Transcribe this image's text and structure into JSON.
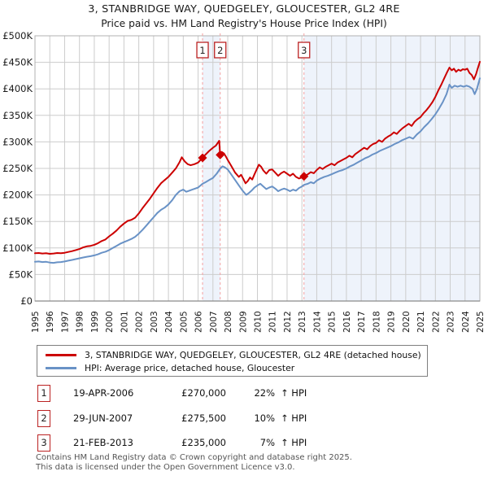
{
  "chart_data": {
    "type": "line",
    "title": "3, STANBRIDGE WAY, QUEDGELEY, GLOUCESTER, GL2 4RE",
    "subtitle": "Price paid vs. HM Land Registry's House Price Index (HPI)",
    "units": "GBP_thousands",
    "x_range": [
      1995,
      2025
    ],
    "y_range_k": [
      0,
      500
    ],
    "grid": true,
    "legend_position": "bottom",
    "y_tick_values_k": [
      0,
      50,
      100,
      150,
      200,
      250,
      300,
      350,
      400,
      450,
      500
    ],
    "y_tick_labels": [
      "£0",
      "£50K",
      "£100K",
      "£150K",
      "£200K",
      "£250K",
      "£300K",
      "£350K",
      "£400K",
      "£450K",
      "£500K"
    ],
    "x_ticks": [
      1995,
      1996,
      1997,
      1998,
      1999,
      2000,
      2001,
      2002,
      2003,
      2004,
      2005,
      2006,
      2007,
      2008,
      2009,
      2010,
      2011,
      2012,
      2013,
      2014,
      2015,
      2016,
      2017,
      2018,
      2019,
      2020,
      2021,
      2022,
      2023,
      2024,
      2025
    ],
    "shaded_bands": [
      [
        2006.3,
        2007.49
      ],
      [
        2013.14,
        2025
      ]
    ],
    "band_color": "#eef3fb",
    "dashed_line_color": "#f4a0a0",
    "sales_markers": [
      {
        "n": "1",
        "x": 2006.3,
        "y_k": 270
      },
      {
        "n": "2",
        "x": 2007.49,
        "y_k": 275.5
      },
      {
        "n": "3",
        "x": 2013.14,
        "y_k": 235
      }
    ],
    "series": [
      {
        "name": "3, STANBRIDGE WAY, QUEDGELEY, GLOUCESTER, GL2 4RE (detached house)",
        "color": "#cc0000",
        "points": [
          [
            1995,
            90
          ],
          [
            1995.25,
            90.5
          ],
          [
            1995.5,
            89.5
          ],
          [
            1995.75,
            90
          ],
          [
            1996,
            89
          ],
          [
            1996.25,
            89.5
          ],
          [
            1996.5,
            90.5
          ],
          [
            1996.75,
            90
          ],
          [
            1997,
            91
          ],
          [
            1997.25,
            92.5
          ],
          [
            1997.5,
            94
          ],
          [
            1997.75,
            96
          ],
          [
            1998,
            98
          ],
          [
            1998.25,
            101
          ],
          [
            1998.5,
            103
          ],
          [
            1998.75,
            104
          ],
          [
            1999,
            106
          ],
          [
            1999.25,
            109
          ],
          [
            1999.5,
            113
          ],
          [
            1999.75,
            116
          ],
          [
            2000,
            122
          ],
          [
            2000.25,
            127
          ],
          [
            2000.5,
            133
          ],
          [
            2000.75,
            140
          ],
          [
            2001,
            146
          ],
          [
            2001.25,
            151
          ],
          [
            2001.5,
            153
          ],
          [
            2001.75,
            157
          ],
          [
            2002,
            165
          ],
          [
            2002.25,
            175
          ],
          [
            2002.5,
            184
          ],
          [
            2002.75,
            193
          ],
          [
            2003,
            203
          ],
          [
            2003.25,
            213
          ],
          [
            2003.5,
            222
          ],
          [
            2003.75,
            228
          ],
          [
            2004,
            234
          ],
          [
            2004.25,
            242
          ],
          [
            2004.5,
            250
          ],
          [
            2004.75,
            262
          ],
          [
            2004.9,
            271
          ],
          [
            2005.1,
            263
          ],
          [
            2005.3,
            258
          ],
          [
            2005.5,
            256
          ],
          [
            2005.75,
            258
          ],
          [
            2006,
            261
          ],
          [
            2006.3,
            270
          ],
          [
            2006.5,
            276
          ],
          [
            2006.75,
            283
          ],
          [
            2007,
            289
          ],
          [
            2007.2,
            293
          ],
          [
            2007.42,
            302
          ],
          [
            2007.49,
            275.5
          ],
          [
            2007.6,
            281
          ],
          [
            2007.75,
            278
          ],
          [
            2007.9,
            271
          ],
          [
            2008,
            266
          ],
          [
            2008.25,
            254
          ],
          [
            2008.5,
            242
          ],
          [
            2008.75,
            234
          ],
          [
            2008.9,
            238
          ],
          [
            2009.05,
            230
          ],
          [
            2009.2,
            222
          ],
          [
            2009.35,
            226
          ],
          [
            2009.5,
            233
          ],
          [
            2009.65,
            229
          ],
          [
            2009.8,
            239
          ],
          [
            2010,
            251
          ],
          [
            2010.1,
            257
          ],
          [
            2010.25,
            253
          ],
          [
            2010.4,
            246
          ],
          [
            2010.6,
            240
          ],
          [
            2010.8,
            247
          ],
          [
            2011,
            248
          ],
          [
            2011.2,
            242
          ],
          [
            2011.4,
            236
          ],
          [
            2011.6,
            241
          ],
          [
            2011.8,
            244
          ],
          [
            2012,
            240
          ],
          [
            2012.2,
            236
          ],
          [
            2012.4,
            240
          ],
          [
            2012.6,
            234
          ],
          [
            2012.8,
            231
          ],
          [
            2013,
            233
          ],
          [
            2013.14,
            235
          ],
          [
            2013.4,
            239
          ],
          [
            2013.6,
            243
          ],
          [
            2013.8,
            241
          ],
          [
            2014,
            247
          ],
          [
            2014.2,
            252
          ],
          [
            2014.4,
            249
          ],
          [
            2014.6,
            253
          ],
          [
            2014.8,
            256
          ],
          [
            2015,
            259
          ],
          [
            2015.2,
            256
          ],
          [
            2015.4,
            261
          ],
          [
            2015.6,
            264
          ],
          [
            2015.8,
            267
          ],
          [
            2016,
            270
          ],
          [
            2016.2,
            274
          ],
          [
            2016.4,
            271
          ],
          [
            2016.6,
            277
          ],
          [
            2016.8,
            281
          ],
          [
            2017,
            285
          ],
          [
            2017.2,
            289
          ],
          [
            2017.4,
            286
          ],
          [
            2017.6,
            292
          ],
          [
            2017.8,
            296
          ],
          [
            2018,
            298
          ],
          [
            2018.2,
            303
          ],
          [
            2018.4,
            300
          ],
          [
            2018.6,
            306
          ],
          [
            2018.8,
            310
          ],
          [
            2019,
            313
          ],
          [
            2019.2,
            318
          ],
          [
            2019.4,
            315
          ],
          [
            2019.6,
            321
          ],
          [
            2019.8,
            326
          ],
          [
            2020,
            330
          ],
          [
            2020.2,
            334
          ],
          [
            2020.4,
            330
          ],
          [
            2020.6,
            338
          ],
          [
            2020.8,
            343
          ],
          [
            2021,
            347
          ],
          [
            2021.2,
            354
          ],
          [
            2021.4,
            360
          ],
          [
            2021.6,
            367
          ],
          [
            2021.8,
            375
          ],
          [
            2022,
            385
          ],
          [
            2022.2,
            397
          ],
          [
            2022.4,
            408
          ],
          [
            2022.6,
            420
          ],
          [
            2022.8,
            432
          ],
          [
            2022.95,
            440
          ],
          [
            2023.1,
            435
          ],
          [
            2023.25,
            438
          ],
          [
            2023.4,
            432
          ],
          [
            2023.55,
            436
          ],
          [
            2023.7,
            434
          ],
          [
            2023.85,
            437
          ],
          [
            2024,
            436
          ],
          [
            2024.15,
            438
          ],
          [
            2024.3,
            430
          ],
          [
            2024.45,
            426
          ],
          [
            2024.6,
            418
          ],
          [
            2024.75,
            428
          ],
          [
            2024.85,
            438
          ],
          [
            2025,
            451
          ]
        ]
      },
      {
        "name": "HPI: Average price, detached house, Gloucester",
        "color": "#6992c6",
        "points": [
          [
            1995,
            74
          ],
          [
            1995.25,
            74.5
          ],
          [
            1995.5,
            73.5
          ],
          [
            1995.75,
            74
          ],
          [
            1996,
            72.5
          ],
          [
            1996.25,
            72
          ],
          [
            1996.5,
            73
          ],
          [
            1996.75,
            73.5
          ],
          [
            1997,
            74.5
          ],
          [
            1997.25,
            76
          ],
          [
            1997.5,
            77.5
          ],
          [
            1997.75,
            79
          ],
          [
            1998,
            80.5
          ],
          [
            1998.25,
            82
          ],
          [
            1998.5,
            83.5
          ],
          [
            1998.75,
            84.5
          ],
          [
            1999,
            86
          ],
          [
            1999.25,
            88
          ],
          [
            1999.5,
            91
          ],
          [
            1999.75,
            93
          ],
          [
            2000,
            96
          ],
          [
            2000.25,
            100
          ],
          [
            2000.5,
            104
          ],
          [
            2000.75,
            108
          ],
          [
            2001,
            111
          ],
          [
            2001.25,
            114
          ],
          [
            2001.5,
            117
          ],
          [
            2001.75,
            121
          ],
          [
            2002,
            127
          ],
          [
            2002.25,
            134
          ],
          [
            2002.5,
            142
          ],
          [
            2002.75,
            150
          ],
          [
            2003,
            158
          ],
          [
            2003.25,
            166
          ],
          [
            2003.5,
            172
          ],
          [
            2003.75,
            176
          ],
          [
            2004,
            182
          ],
          [
            2004.25,
            190
          ],
          [
            2004.5,
            200
          ],
          [
            2004.75,
            207
          ],
          [
            2005,
            210
          ],
          [
            2005.2,
            206
          ],
          [
            2005.4,
            208
          ],
          [
            2005.6,
            210
          ],
          [
            2005.8,
            212
          ],
          [
            2006,
            214
          ],
          [
            2006.3,
            221
          ],
          [
            2006.5,
            224
          ],
          [
            2006.75,
            228
          ],
          [
            2007,
            232
          ],
          [
            2007.25,
            240
          ],
          [
            2007.5,
            250
          ],
          [
            2007.65,
            254
          ],
          [
            2007.8,
            252
          ],
          [
            2008,
            248
          ],
          [
            2008.25,
            238
          ],
          [
            2008.5,
            228
          ],
          [
            2008.75,
            218
          ],
          [
            2009,
            208
          ],
          [
            2009.25,
            200
          ],
          [
            2009.4,
            203
          ],
          [
            2009.6,
            208
          ],
          [
            2009.8,
            214
          ],
          [
            2010,
            218
          ],
          [
            2010.2,
            221
          ],
          [
            2010.4,
            216
          ],
          [
            2010.6,
            211
          ],
          [
            2010.8,
            214
          ],
          [
            2011,
            216
          ],
          [
            2011.2,
            212
          ],
          [
            2011.4,
            207
          ],
          [
            2011.6,
            210
          ],
          [
            2011.8,
            212
          ],
          [
            2012,
            210
          ],
          [
            2012.2,
            207
          ],
          [
            2012.4,
            210
          ],
          [
            2012.6,
            208
          ],
          [
            2012.8,
            213
          ],
          [
            2013,
            216
          ],
          [
            2013.14,
            219
          ],
          [
            2013.4,
            221
          ],
          [
            2013.6,
            224
          ],
          [
            2013.8,
            222
          ],
          [
            2014,
            227
          ],
          [
            2014.25,
            231
          ],
          [
            2014.5,
            234
          ],
          [
            2014.75,
            236
          ],
          [
            2015,
            239
          ],
          [
            2015.25,
            242
          ],
          [
            2015.5,
            245
          ],
          [
            2015.75,
            247
          ],
          [
            2016,
            250
          ],
          [
            2016.25,
            254
          ],
          [
            2016.5,
            257
          ],
          [
            2016.75,
            261
          ],
          [
            2017,
            265
          ],
          [
            2017.25,
            269
          ],
          [
            2017.5,
            272
          ],
          [
            2017.75,
            276
          ],
          [
            2018,
            279
          ],
          [
            2018.25,
            283
          ],
          [
            2018.5,
            286
          ],
          [
            2018.75,
            289
          ],
          [
            2019,
            292
          ],
          [
            2019.25,
            296
          ],
          [
            2019.5,
            299
          ],
          [
            2019.75,
            303
          ],
          [
            2020,
            306
          ],
          [
            2020.25,
            309
          ],
          [
            2020.5,
            306
          ],
          [
            2020.75,
            314
          ],
          [
            2021,
            320
          ],
          [
            2021.25,
            328
          ],
          [
            2021.5,
            335
          ],
          [
            2021.75,
            343
          ],
          [
            2022,
            352
          ],
          [
            2022.25,
            363
          ],
          [
            2022.5,
            375
          ],
          [
            2022.75,
            390
          ],
          [
            2022.95,
            408
          ],
          [
            2023.1,
            402
          ],
          [
            2023.3,
            406
          ],
          [
            2023.5,
            404
          ],
          [
            2023.7,
            406
          ],
          [
            2023.9,
            404
          ],
          [
            2024.1,
            406
          ],
          [
            2024.3,
            404
          ],
          [
            2024.5,
            400
          ],
          [
            2024.65,
            390
          ],
          [
            2024.8,
            400
          ],
          [
            2025,
            420
          ]
        ]
      }
    ]
  },
  "sales": [
    {
      "num": "1",
      "date": "19-APR-2006",
      "price": "£270,000",
      "change": "22%",
      "rel": "↑ HPI"
    },
    {
      "num": "2",
      "date": "29-JUN-2007",
      "price": "£275,500",
      "change": "10%",
      "rel": "↑ HPI"
    },
    {
      "num": "3",
      "date": "21-FEB-2013",
      "price": "£235,000",
      "change": "7%",
      "rel": "↑ HPI"
    }
  ],
  "footer": {
    "line1": "Contains HM Land Registry data © Crown copyright and database right 2025.",
    "line2": "This data is licensed under the Open Government Licence v3.0."
  }
}
